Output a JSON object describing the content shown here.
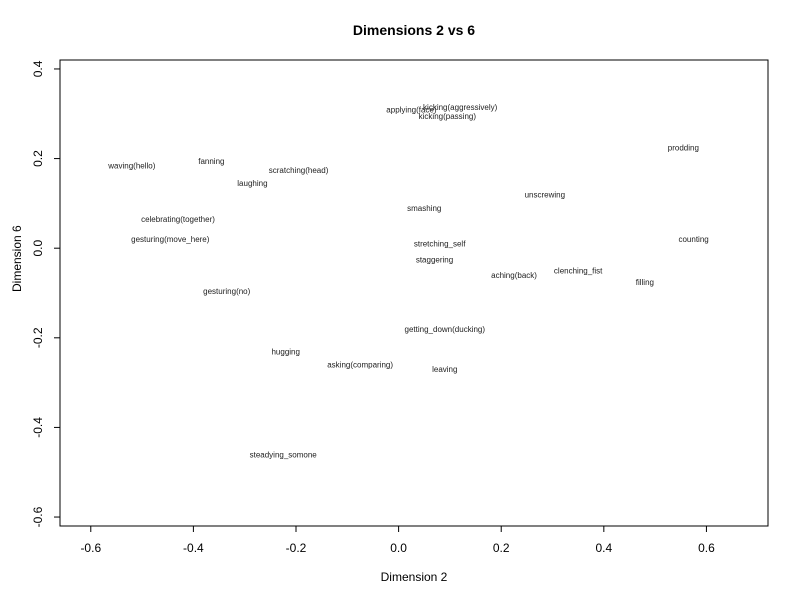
{
  "chart_data": {
    "type": "scatter",
    "title": "Dimensions 2 vs 6",
    "xlabel": "Dimension 2",
    "ylabel": "Dimension 6",
    "xlim": [
      -0.66,
      0.72
    ],
    "ylim": [
      -0.62,
      0.42
    ],
    "xticks": [
      "-0.6",
      "-0.4",
      "-0.2",
      "0.0",
      "0.2",
      "0.4",
      "0.6"
    ],
    "yticks": [
      "-0.6",
      "-0.4",
      "-0.2",
      "0.0",
      "0.2",
      "0.4"
    ],
    "grid": false,
    "points": [
      {
        "label": "applying(face)",
        "x": 0.025,
        "y": 0.31
      },
      {
        "label": "kicking(aggressively)",
        "x": 0.12,
        "y": 0.315
      },
      {
        "label": "kicking(passing)",
        "x": 0.095,
        "y": 0.295
      },
      {
        "label": "prodding",
        "x": 0.555,
        "y": 0.225
      },
      {
        "label": "waving(hello)",
        "x": -0.52,
        "y": 0.185
      },
      {
        "label": "fanning",
        "x": -0.365,
        "y": 0.195
      },
      {
        "label": "scratching(head)",
        "x": -0.195,
        "y": 0.175
      },
      {
        "label": "laughing",
        "x": -0.285,
        "y": 0.145
      },
      {
        "label": "unscrewing",
        "x": 0.285,
        "y": 0.12
      },
      {
        "label": "smashing",
        "x": 0.05,
        "y": 0.09
      },
      {
        "label": "celebrating(together)",
        "x": -0.43,
        "y": 0.065
      },
      {
        "label": "gesturing(move_here)",
        "x": -0.445,
        "y": 0.02
      },
      {
        "label": "counting",
        "x": 0.575,
        "y": 0.02
      },
      {
        "label": "stretching_self",
        "x": 0.08,
        "y": 0.01
      },
      {
        "label": "staggering",
        "x": 0.07,
        "y": -0.025
      },
      {
        "label": "clenching_fist",
        "x": 0.35,
        "y": -0.05
      },
      {
        "label": "aching(back)",
        "x": 0.225,
        "y": -0.06
      },
      {
        "label": "filling",
        "x": 0.48,
        "y": -0.075
      },
      {
        "label": "gesturing(no)",
        "x": -0.335,
        "y": -0.095
      },
      {
        "label": "getting_down(ducking)",
        "x": 0.09,
        "y": -0.18
      },
      {
        "label": "hugging",
        "x": -0.22,
        "y": -0.23
      },
      {
        "label": "asking(comparing)",
        "x": -0.075,
        "y": -0.26
      },
      {
        "label": "leaving",
        "x": 0.09,
        "y": -0.27
      },
      {
        "label": "steadying_somone",
        "x": -0.225,
        "y": -0.46
      }
    ]
  }
}
